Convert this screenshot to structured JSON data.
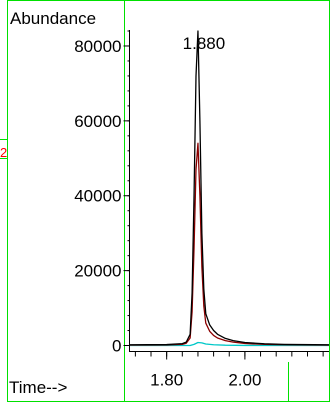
{
  "chart_data": {
    "type": "line",
    "ylabel": "Abundance",
    "xlabel": "Time-->",
    "peak_annotation": {
      "text": "1.880",
      "x": 1.88
    },
    "side_marker": "2",
    "xlim": [
      1.705,
      2.215
    ],
    "ylim": [
      -1600,
      84000
    ],
    "x_ticks": [
      1.8,
      2.0
    ],
    "x_tick_labels": [
      "1.80",
      "2.00"
    ],
    "x_minor_step": 0.04,
    "y_ticks": [
      0,
      20000,
      40000,
      60000,
      80000
    ],
    "y_tick_labels": [
      "0",
      "20000",
      "40000",
      "60000",
      "80000"
    ],
    "y_minor_step": 4000,
    "series": [
      {
        "color": "#000000",
        "x": [
          1.705,
          1.8,
          1.84,
          1.85,
          1.86,
          1.865,
          1.87,
          1.875,
          1.88,
          1.885,
          1.89,
          1.895,
          1.9,
          1.91,
          1.92,
          1.93,
          1.95,
          1.97,
          2.0,
          2.05,
          2.1,
          2.215
        ],
        "y": [
          200,
          250,
          500,
          900,
          3000,
          14000,
          40000,
          72000,
          84000,
          60000,
          30000,
          15000,
          8500,
          5500,
          4000,
          3000,
          1900,
          1300,
          800,
          450,
          300,
          200
        ]
      },
      {
        "color": "#8b0000",
        "x": [
          1.705,
          1.8,
          1.84,
          1.85,
          1.86,
          1.865,
          1.87,
          1.875,
          1.88,
          1.885,
          1.89,
          1.895,
          1.9,
          1.91,
          1.92,
          1.93,
          1.95,
          1.97,
          2.0,
          2.05,
          2.1,
          2.215
        ],
        "y": [
          100,
          150,
          300,
          600,
          2000,
          9000,
          26000,
          47000,
          54000,
          40000,
          21000,
          10500,
          6000,
          3800,
          2700,
          2000,
          1300,
          900,
          550,
          300,
          200,
          100
        ]
      },
      {
        "color": "#00c8c8",
        "x": [
          1.705,
          1.86,
          1.87,
          1.88,
          1.89,
          1.9,
          1.92,
          1.95,
          2.0,
          2.215
        ],
        "y": [
          0,
          0,
          300,
          800,
          700,
          400,
          200,
          80,
          20,
          0
        ]
      }
    ]
  }
}
